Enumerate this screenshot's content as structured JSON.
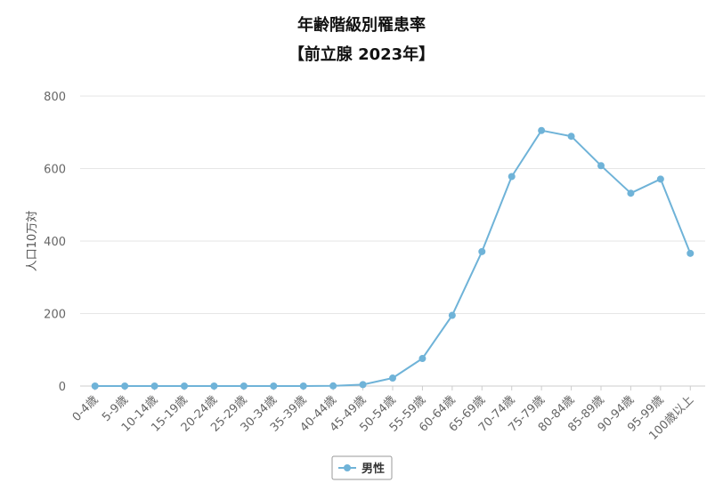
{
  "chart_data": {
    "type": "line",
    "title": "年齢階級別罹患率",
    "subtitle": "【前立腺 2023年】",
    "ylabel": "人口10万対",
    "xlabel": "",
    "ylim": [
      0,
      800
    ],
    "yticks": [
      0,
      200,
      400,
      600,
      800
    ],
    "grid": true,
    "legend_position": "bottom-center",
    "categories": [
      "0-4歳",
      "5-9歳",
      "10-14歳",
      "15-19歳",
      "20-24歳",
      "25-29歳",
      "30-34歳",
      "35-39歳",
      "40-44歳",
      "45-49歳",
      "50-54歳",
      "55-59歳",
      "60-64歳",
      "65-69歳",
      "70-74歳",
      "75-79歳",
      "80-84歳",
      "85-89歳",
      "90-94歳",
      "95-99歳",
      "100歳以上"
    ],
    "series": [
      {
        "name": "男性",
        "color": "#6fb3d8",
        "values": [
          0,
          0,
          0,
          0,
          0,
          0,
          0,
          0,
          0.5,
          4,
          22,
          76,
          195,
          371,
          578,
          705,
          689,
          608,
          532,
          571,
          366
        ]
      }
    ]
  }
}
